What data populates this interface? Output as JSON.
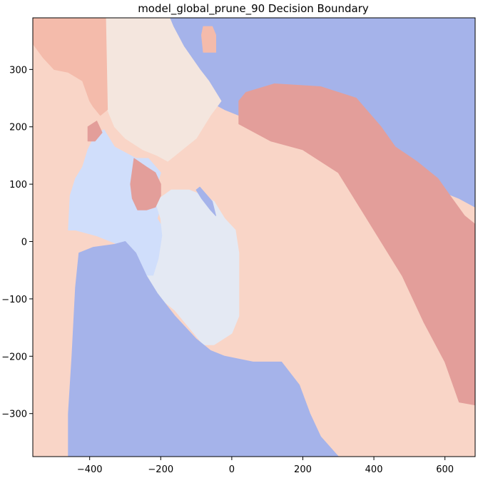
{
  "chart_data": {
    "type": "contourf",
    "title": "model_global_prune_90 Decision Boundary",
    "xlabel": "",
    "ylabel": "",
    "xlim": [
      -560,
      685
    ],
    "ylim": [
      -375,
      390
    ],
    "x_ticks": [
      -400,
      -200,
      0,
      200,
      400,
      600
    ],
    "y_ticks": [
      -300,
      -200,
      -100,
      0,
      100,
      200,
      300
    ],
    "x_tick_labels": [
      "−400",
      "−200",
      "0",
      "200",
      "400",
      "600"
    ],
    "y_tick_labels": [
      "−300",
      "−200",
      "−100",
      "0",
      "100",
      "200",
      "300"
    ],
    "colormap": "coolwarm",
    "grid": false,
    "legend": false,
    "levels": [
      {
        "name": "level-0",
        "color": "#a5b3ea"
      },
      {
        "name": "level-1",
        "color": "#d0defb"
      },
      {
        "name": "level-2",
        "color": "#e4e9f3"
      },
      {
        "name": "level-3",
        "color": "#f4e6de"
      },
      {
        "name": "level-4",
        "color": "#f9d5c7"
      },
      {
        "name": "level-5",
        "color": "#f4bbab"
      },
      {
        "name": "level-6",
        "color": "#e39e9a"
      }
    ],
    "regions": [
      {
        "level": 4,
        "points": [
          [
            -560,
            390
          ],
          [
            -560,
            -375
          ],
          [
            685,
            -375
          ],
          [
            685,
            390
          ]
        ]
      },
      {
        "level": 0,
        "points": [
          [
            -175,
            390
          ],
          [
            -170,
            340
          ],
          [
            -140,
            320
          ],
          [
            -110,
            290
          ],
          [
            -80,
            250
          ],
          [
            -20,
            230
          ],
          [
            20,
            220
          ],
          [
            80,
            210
          ],
          [
            170,
            210
          ],
          [
            300,
            200
          ],
          [
            380,
            190
          ],
          [
            440,
            180
          ],
          [
            480,
            150
          ],
          [
            520,
            110
          ],
          [
            560,
            100
          ],
          [
            600,
            85
          ],
          [
            640,
            75
          ],
          [
            685,
            60
          ],
          [
            685,
            390
          ]
        ]
      },
      {
        "level": 3,
        "points": [
          [
            -355,
            390
          ],
          [
            -350,
            230
          ],
          [
            -330,
            200
          ],
          [
            -300,
            180
          ],
          [
            -250,
            160
          ],
          [
            -210,
            150
          ],
          [
            -180,
            140
          ],
          [
            -140,
            160
          ],
          [
            -100,
            180
          ],
          [
            -60,
            220
          ],
          [
            -30,
            245
          ],
          [
            -65,
            280
          ],
          [
            -90,
            300
          ],
          [
            -135,
            340
          ],
          [
            -165,
            375
          ],
          [
            -175,
            390
          ]
        ]
      },
      {
        "level": 5,
        "points": [
          [
            -560,
            390
          ],
          [
            -560,
            345
          ],
          [
            -530,
            320
          ],
          [
            -500,
            300
          ],
          [
            -460,
            295
          ],
          [
            -420,
            280
          ],
          [
            -400,
            245
          ],
          [
            -390,
            235
          ],
          [
            -370,
            220
          ],
          [
            -350,
            230
          ],
          [
            -355,
            390
          ]
        ]
      },
      {
        "level": 5,
        "points": [
          [
            -80,
            375
          ],
          [
            -55,
            375
          ],
          [
            -45,
            360
          ],
          [
            -45,
            330
          ],
          [
            -80,
            330
          ],
          [
            -85,
            360
          ]
        ]
      },
      {
        "level": 6,
        "points": [
          [
            20,
            245
          ],
          [
            40,
            260
          ],
          [
            120,
            275
          ],
          [
            250,
            270
          ],
          [
            350,
            250
          ],
          [
            420,
            200
          ],
          [
            460,
            165
          ],
          [
            520,
            140
          ],
          [
            580,
            110
          ],
          [
            620,
            75
          ],
          [
            655,
            45
          ],
          [
            685,
            30
          ],
          [
            685,
            -285
          ],
          [
            640,
            -280
          ],
          [
            600,
            -210
          ],
          [
            540,
            -140
          ],
          [
            480,
            -60
          ],
          [
            420,
            0
          ],
          [
            360,
            60
          ],
          [
            300,
            120
          ],
          [
            200,
            160
          ],
          [
            110,
            175
          ],
          [
            20,
            205
          ]
        ]
      },
      {
        "level": 1,
        "points": [
          [
            -385,
            185
          ],
          [
            -360,
            195
          ],
          [
            -330,
            165
          ],
          [
            -270,
            145
          ],
          [
            -235,
            145
          ],
          [
            -200,
            120
          ],
          [
            -215,
            90
          ],
          [
            -200,
            60
          ],
          [
            -210,
            40
          ],
          [
            -190,
            20
          ],
          [
            -200,
            -40
          ],
          [
            -210,
            -60
          ],
          [
            -240,
            -60
          ],
          [
            -260,
            -40
          ],
          [
            -300,
            -10
          ],
          [
            -340,
            0
          ],
          [
            -380,
            10
          ],
          [
            -440,
            20
          ],
          [
            -460,
            20
          ],
          [
            -455,
            80
          ],
          [
            -440,
            110
          ],
          [
            -420,
            130
          ],
          [
            -405,
            160
          ]
        ]
      },
      {
        "level": 2,
        "points": [
          [
            -240,
            -60
          ],
          [
            -200,
            -100
          ],
          [
            -160,
            -120
          ],
          [
            -120,
            -150
          ],
          [
            -80,
            -180
          ],
          [
            -50,
            -180
          ],
          [
            0,
            -160
          ],
          [
            20,
            -130
          ],
          [
            20,
            -20
          ],
          [
            10,
            20
          ],
          [
            -20,
            40
          ],
          [
            -50,
            70
          ],
          [
            -80,
            80
          ],
          [
            -120,
            90
          ],
          [
            -170,
            90
          ],
          [
            -215,
            70
          ],
          [
            -200,
            40
          ],
          [
            -195,
            10
          ],
          [
            -205,
            -30
          ],
          [
            -220,
            -60
          ]
        ]
      },
      {
        "level": 6,
        "points": [
          [
            -275,
            145
          ],
          [
            -240,
            130
          ],
          [
            -215,
            120
          ],
          [
            -200,
            100
          ],
          [
            -200,
            80
          ],
          [
            -215,
            60
          ],
          [
            -240,
            55
          ],
          [
            -265,
            55
          ],
          [
            -280,
            75
          ],
          [
            -285,
            100
          ]
        ]
      },
      {
        "level": 6,
        "points": [
          [
            -405,
            200
          ],
          [
            -380,
            210
          ],
          [
            -365,
            190
          ],
          [
            -385,
            175
          ],
          [
            -405,
            175
          ]
        ]
      },
      {
        "level": 0,
        "points": [
          [
            -100,
            90
          ],
          [
            -85,
            75
          ],
          [
            -60,
            55
          ],
          [
            -45,
            45
          ],
          [
            -55,
            70
          ],
          [
            -90,
            95
          ]
        ]
      },
      {
        "level": 0,
        "points": [
          [
            -460,
            -375
          ],
          [
            -460,
            -300
          ],
          [
            -450,
            -200
          ],
          [
            -440,
            -80
          ],
          [
            -430,
            -20
          ],
          [
            -390,
            -10
          ],
          [
            -330,
            -5
          ],
          [
            -300,
            0
          ],
          [
            -270,
            -20
          ],
          [
            -240,
            -60
          ],
          [
            -210,
            -90
          ],
          [
            -160,
            -130
          ],
          [
            -100,
            -170
          ],
          [
            -60,
            -190
          ],
          [
            -20,
            -200
          ],
          [
            60,
            -210
          ],
          [
            140,
            -210
          ],
          [
            190,
            -250
          ],
          [
            220,
            -300
          ],
          [
            250,
            -340
          ],
          [
            300,
            -375
          ]
        ]
      }
    ]
  }
}
